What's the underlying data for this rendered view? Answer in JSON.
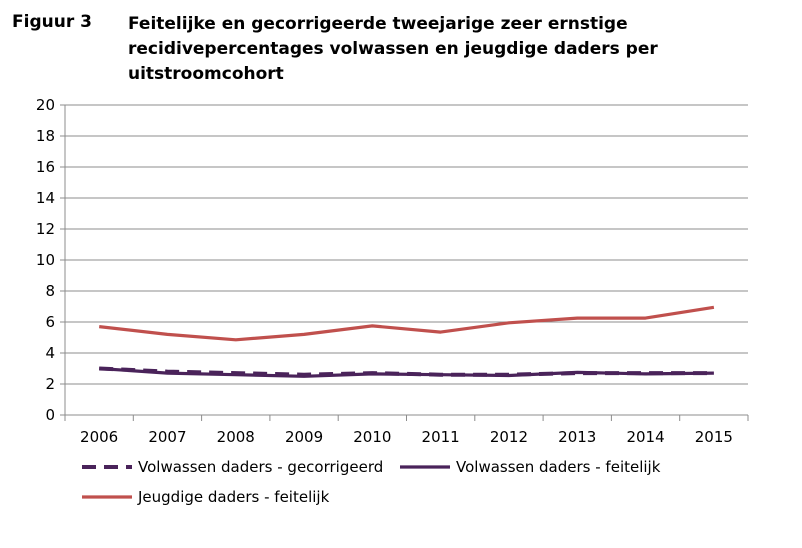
{
  "figure": {
    "label": "Figuur 3",
    "title": "Feitelijke en gecorrigeerde tweejarige zeer ernstige recidivepercentages volwassen en jeugdige daders per uitstroomcohort"
  },
  "chart_data": {
    "type": "line",
    "title": "Feitelijke en gecorrigeerde tweejarige zeer ernstige recidivepercentages volwassen en jeugdige daders per uitstroomcohort",
    "xlabel": "",
    "ylabel": "",
    "x": [
      "2006",
      "2007",
      "2008",
      "2009",
      "2010",
      "2011",
      "2012",
      "2013",
      "2014",
      "2015"
    ],
    "ylim": [
      0,
      20
    ],
    "yticks": [
      0,
      2,
      4,
      6,
      8,
      10,
      12,
      14,
      16,
      18,
      20
    ],
    "grid": true,
    "legend_position": "bottom",
    "series": [
      {
        "name": "Volwassen daders - gecorrigeerd",
        "values": [
          3.0,
          2.8,
          2.7,
          2.6,
          2.7,
          2.6,
          2.6,
          2.7,
          2.7,
          2.7
        ],
        "color": "#4a235a",
        "dashed": true
      },
      {
        "name": "Volwassen daders - feitelijk",
        "values": [
          3.0,
          2.7,
          2.6,
          2.5,
          2.65,
          2.6,
          2.55,
          2.75,
          2.65,
          2.7
        ],
        "color": "#4a235a",
        "dashed": false
      },
      {
        "name": "Jeugdige daders - feitelijk",
        "values": [
          5.7,
          5.2,
          4.85,
          5.2,
          5.75,
          5.35,
          5.95,
          6.25,
          6.25,
          6.95
        ],
        "color": "#c0504d",
        "dashed": false
      }
    ]
  }
}
